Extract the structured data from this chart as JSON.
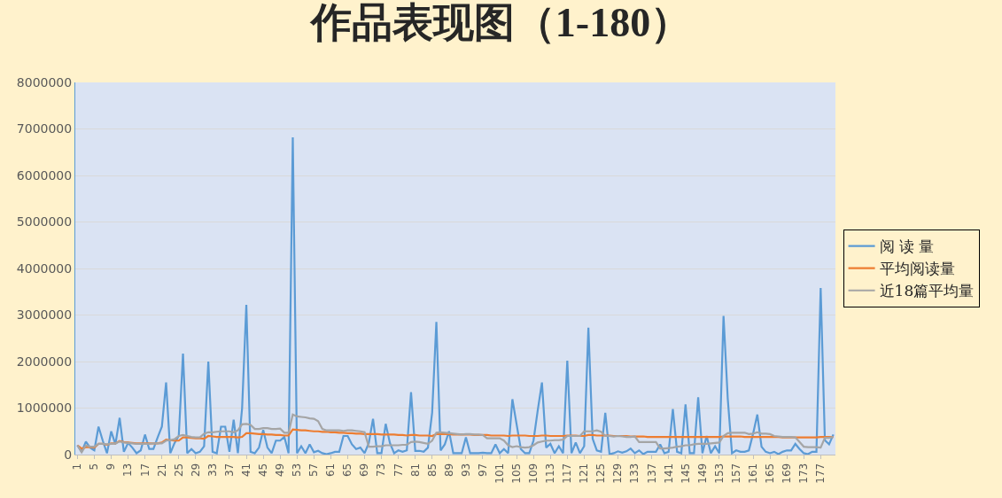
{
  "chart_data": {
    "type": "line",
    "title": "作品表现图（1-180）",
    "x": [
      1,
      2,
      3,
      4,
      5,
      6,
      7,
      8,
      9,
      10,
      11,
      12,
      13,
      14,
      15,
      16,
      17,
      18,
      19,
      20,
      21,
      22,
      23,
      24,
      25,
      26,
      27,
      28,
      29,
      30,
      31,
      32,
      33,
      34,
      35,
      36,
      37,
      38,
      39,
      40,
      41,
      42,
      43,
      44,
      45,
      46,
      47,
      48,
      49,
      50,
      51,
      52,
      53,
      54,
      55,
      56,
      57,
      58,
      59,
      60,
      61,
      62,
      63,
      64,
      65,
      66,
      67,
      68,
      69,
      70,
      71,
      72,
      73,
      74,
      75,
      76,
      77,
      78,
      79,
      80,
      81,
      82,
      83,
      84,
      85,
      86,
      87,
      88,
      89,
      90,
      91,
      92,
      93,
      94,
      95,
      96,
      97,
      98,
      99,
      100,
      101,
      102,
      103,
      104,
      105,
      106,
      107,
      108,
      109,
      110,
      111,
      112,
      113,
      114,
      115,
      116,
      117,
      118,
      119,
      120,
      121,
      122,
      123,
      124,
      125,
      126,
      127,
      128,
      129,
      130,
      131,
      132,
      133,
      134,
      135,
      136,
      137,
      138,
      139,
      140,
      141,
      142,
      143,
      144,
      145,
      146,
      147,
      148,
      149,
      150,
      151,
      152,
      153,
      154,
      155,
      156,
      157,
      158,
      159,
      160,
      161,
      162,
      163,
      164,
      165,
      166,
      167,
      168,
      169,
      170,
      171,
      172,
      173,
      174,
      175,
      176,
      177,
      178,
      179,
      180
    ],
    "series": [
      {
        "name": "阅 读 量",
        "color": "#5b9bd5",
        "values": [
          200000,
          60000,
          280000,
          150000,
          90000,
          600000,
          300000,
          30000,
          500000,
          220000,
          790000,
          60000,
          250000,
          150000,
          30000,
          90000,
          430000,
          120000,
          120000,
          370000,
          600000,
          1550000,
          30000,
          250000,
          400000,
          2170000,
          30000,
          120000,
          30000,
          60000,
          180000,
          2000000,
          60000,
          30000,
          600000,
          600000,
          60000,
          750000,
          30000,
          1000000,
          3220000,
          60000,
          30000,
          150000,
          530000,
          150000,
          30000,
          300000,
          300000,
          380000,
          30000,
          6820000,
          30000,
          180000,
          30000,
          220000,
          50000,
          80000,
          30000,
          10000,
          30000,
          60000,
          60000,
          400000,
          400000,
          220000,
          120000,
          150000,
          30000,
          250000,
          770000,
          30000,
          30000,
          660000,
          250000,
          30000,
          90000,
          60000,
          90000,
          1340000,
          80000,
          80000,
          60000,
          150000,
          900000,
          2850000,
          90000,
          220000,
          500000,
          30000,
          30000,
          30000,
          370000,
          30000,
          30000,
          30000,
          40000,
          30000,
          30000,
          220000,
          30000,
          120000,
          30000,
          1190000,
          650000,
          120000,
          30000,
          30000,
          300000,
          950000,
          1550000,
          150000,
          230000,
          30000,
          180000,
          30000,
          2020000,
          30000,
          260000,
          30000,
          180000,
          2730000,
          340000,
          90000,
          60000,
          900000,
          10000,
          30000,
          70000,
          40000,
          70000,
          130000,
          30000,
          90000,
          10000,
          60000,
          60000,
          60000,
          220000,
          30000,
          60000,
          980000,
          60000,
          30000,
          1080000,
          30000,
          30000,
          1230000,
          30000,
          400000,
          30000,
          180000,
          30000,
          2980000,
          1200000,
          30000,
          90000,
          60000,
          60000,
          90000,
          450000,
          860000,
          170000,
          60000,
          30000,
          60000,
          10000,
          60000,
          90000,
          90000,
          230000,
          120000,
          30000,
          10000,
          60000,
          60000,
          3580000,
          310000,
          220000,
          430000
        ]
      },
      {
        "name": "平均阅读量",
        "color": "#ed7d31",
        "values": [
          200000,
          130000,
          160000,
          160000,
          150000,
          230000,
          230000,
          210000,
          240000,
          240000,
          290000,
          270000,
          260000,
          250000,
          240000,
          240000,
          240000,
          240000,
          240000,
          240000,
          260000,
          320000,
          310000,
          300000,
          300000,
          370000,
          370000,
          360000,
          350000,
          350000,
          340000,
          400000,
          390000,
          380000,
          380000,
          380000,
          380000,
          380000,
          370000,
          380000,
          460000,
          460000,
          450000,
          440000,
          440000,
          430000,
          430000,
          420000,
          420000,
          410000,
          410000,
          540000,
          530000,
          520000,
          520000,
          510000,
          500000,
          500000,
          490000,
          490000,
          480000,
          480000,
          470000,
          470000,
          460000,
          460000,
          450000,
          450000,
          440000,
          440000,
          440000,
          440000,
          430000,
          430000,
          430000,
          430000,
          420000,
          420000,
          410000,
          420000,
          420000,
          410000,
          410000,
          410000,
          400000,
          440000,
          440000,
          440000,
          440000,
          430000,
          430000,
          430000,
          430000,
          430000,
          420000,
          420000,
          420000,
          420000,
          410000,
          410000,
          410000,
          410000,
          400000,
          410000,
          410000,
          410000,
          410000,
          400000,
          400000,
          400000,
          410000,
          410000,
          400000,
          400000,
          400000,
          400000,
          410000,
          410000,
          410000,
          400000,
          400000,
          420000,
          420000,
          410000,
          410000,
          410000,
          410000,
          400000,
          400000,
          400000,
          400000,
          390000,
          390000,
          390000,
          390000,
          380000,
          380000,
          380000,
          380000,
          380000,
          380000,
          380000,
          380000,
          380000,
          380000,
          380000,
          380000,
          380000,
          380000,
          380000,
          380000,
          380000,
          380000,
          390000,
          390000,
          390000,
          390000,
          390000,
          380000,
          380000,
          380000,
          380000,
          380000,
          380000,
          380000,
          380000,
          380000,
          370000,
          370000,
          370000,
          370000,
          370000,
          370000,
          370000,
          370000,
          370000,
          380000,
          380000,
          380000,
          380000
        ]
      },
      {
        "name": "近18篇平均量",
        "color": "#a5a5a5",
        "values": [
          200000,
          50000,
          200000,
          170000,
          170000,
          230000,
          230000,
          220000,
          230000,
          240000,
          280000,
          260000,
          250000,
          240000,
          230000,
          230000,
          230000,
          230000,
          240000,
          240000,
          240000,
          300000,
          310000,
          330000,
          400000,
          420000,
          400000,
          380000,
          370000,
          370000,
          450000,
          480000,
          480000,
          490000,
          500000,
          500000,
          500000,
          480000,
          520000,
          650000,
          660000,
          640000,
          550000,
          550000,
          570000,
          570000,
          550000,
          550000,
          560000,
          470000,
          470000,
          860000,
          820000,
          810000,
          800000,
          780000,
          770000,
          720000,
          550000,
          520000,
          520000,
          520000,
          520000,
          510000,
          520000,
          520000,
          510000,
          500000,
          480000,
          170000,
          170000,
          180000,
          180000,
          200000,
          200000,
          200000,
          200000,
          210000,
          210000,
          270000,
          280000,
          270000,
          250000,
          230000,
          300000,
          470000,
          480000,
          470000,
          460000,
          450000,
          440000,
          430000,
          440000,
          440000,
          430000,
          430000,
          420000,
          350000,
          350000,
          350000,
          350000,
          300000,
          200000,
          160000,
          180000,
          160000,
          150000,
          160000,
          200000,
          260000,
          280000,
          300000,
          300000,
          310000,
          310000,
          320000,
          400000,
          400000,
          400000,
          400000,
          500000,
          500000,
          500000,
          520000,
          490000,
          400000,
          400000,
          390000,
          400000,
          390000,
          380000,
          380000,
          390000,
          270000,
          270000,
          270000,
          270000,
          270000,
          130000,
          130000,
          140000,
          150000,
          170000,
          180000,
          200000,
          200000,
          220000,
          230000,
          230000,
          230000,
          240000,
          250000,
          260000,
          400000,
          460000,
          470000,
          470000,
          470000,
          470000,
          440000,
          450000,
          480000,
          450000,
          450000,
          440000,
          400000,
          390000,
          380000,
          380000,
          380000,
          370000,
          270000,
          170000,
          160000,
          160000,
          160000,
          150000,
          360000,
          360000,
          380000
        ]
      }
    ],
    "xlim": [
      0.5,
      180.5
    ],
    "xticks": [
      1,
      5,
      9,
      13,
      17,
      21,
      25,
      29,
      33,
      37,
      41,
      45,
      49,
      53,
      57,
      61,
      65,
      69,
      73,
      77,
      81,
      85,
      89,
      93,
      97,
      101,
      105,
      109,
      113,
      117,
      121,
      125,
      129,
      133,
      137,
      141,
      145,
      149,
      153,
      157,
      161,
      165,
      169,
      173,
      177
    ],
    "ylim": [
      0,
      8000000
    ],
    "yticks": [
      0,
      1000000,
      2000000,
      3000000,
      4000000,
      5000000,
      6000000,
      7000000,
      8000000
    ],
    "grid": "y",
    "legend": "right",
    "marker": "none",
    "line_style": "solid"
  }
}
